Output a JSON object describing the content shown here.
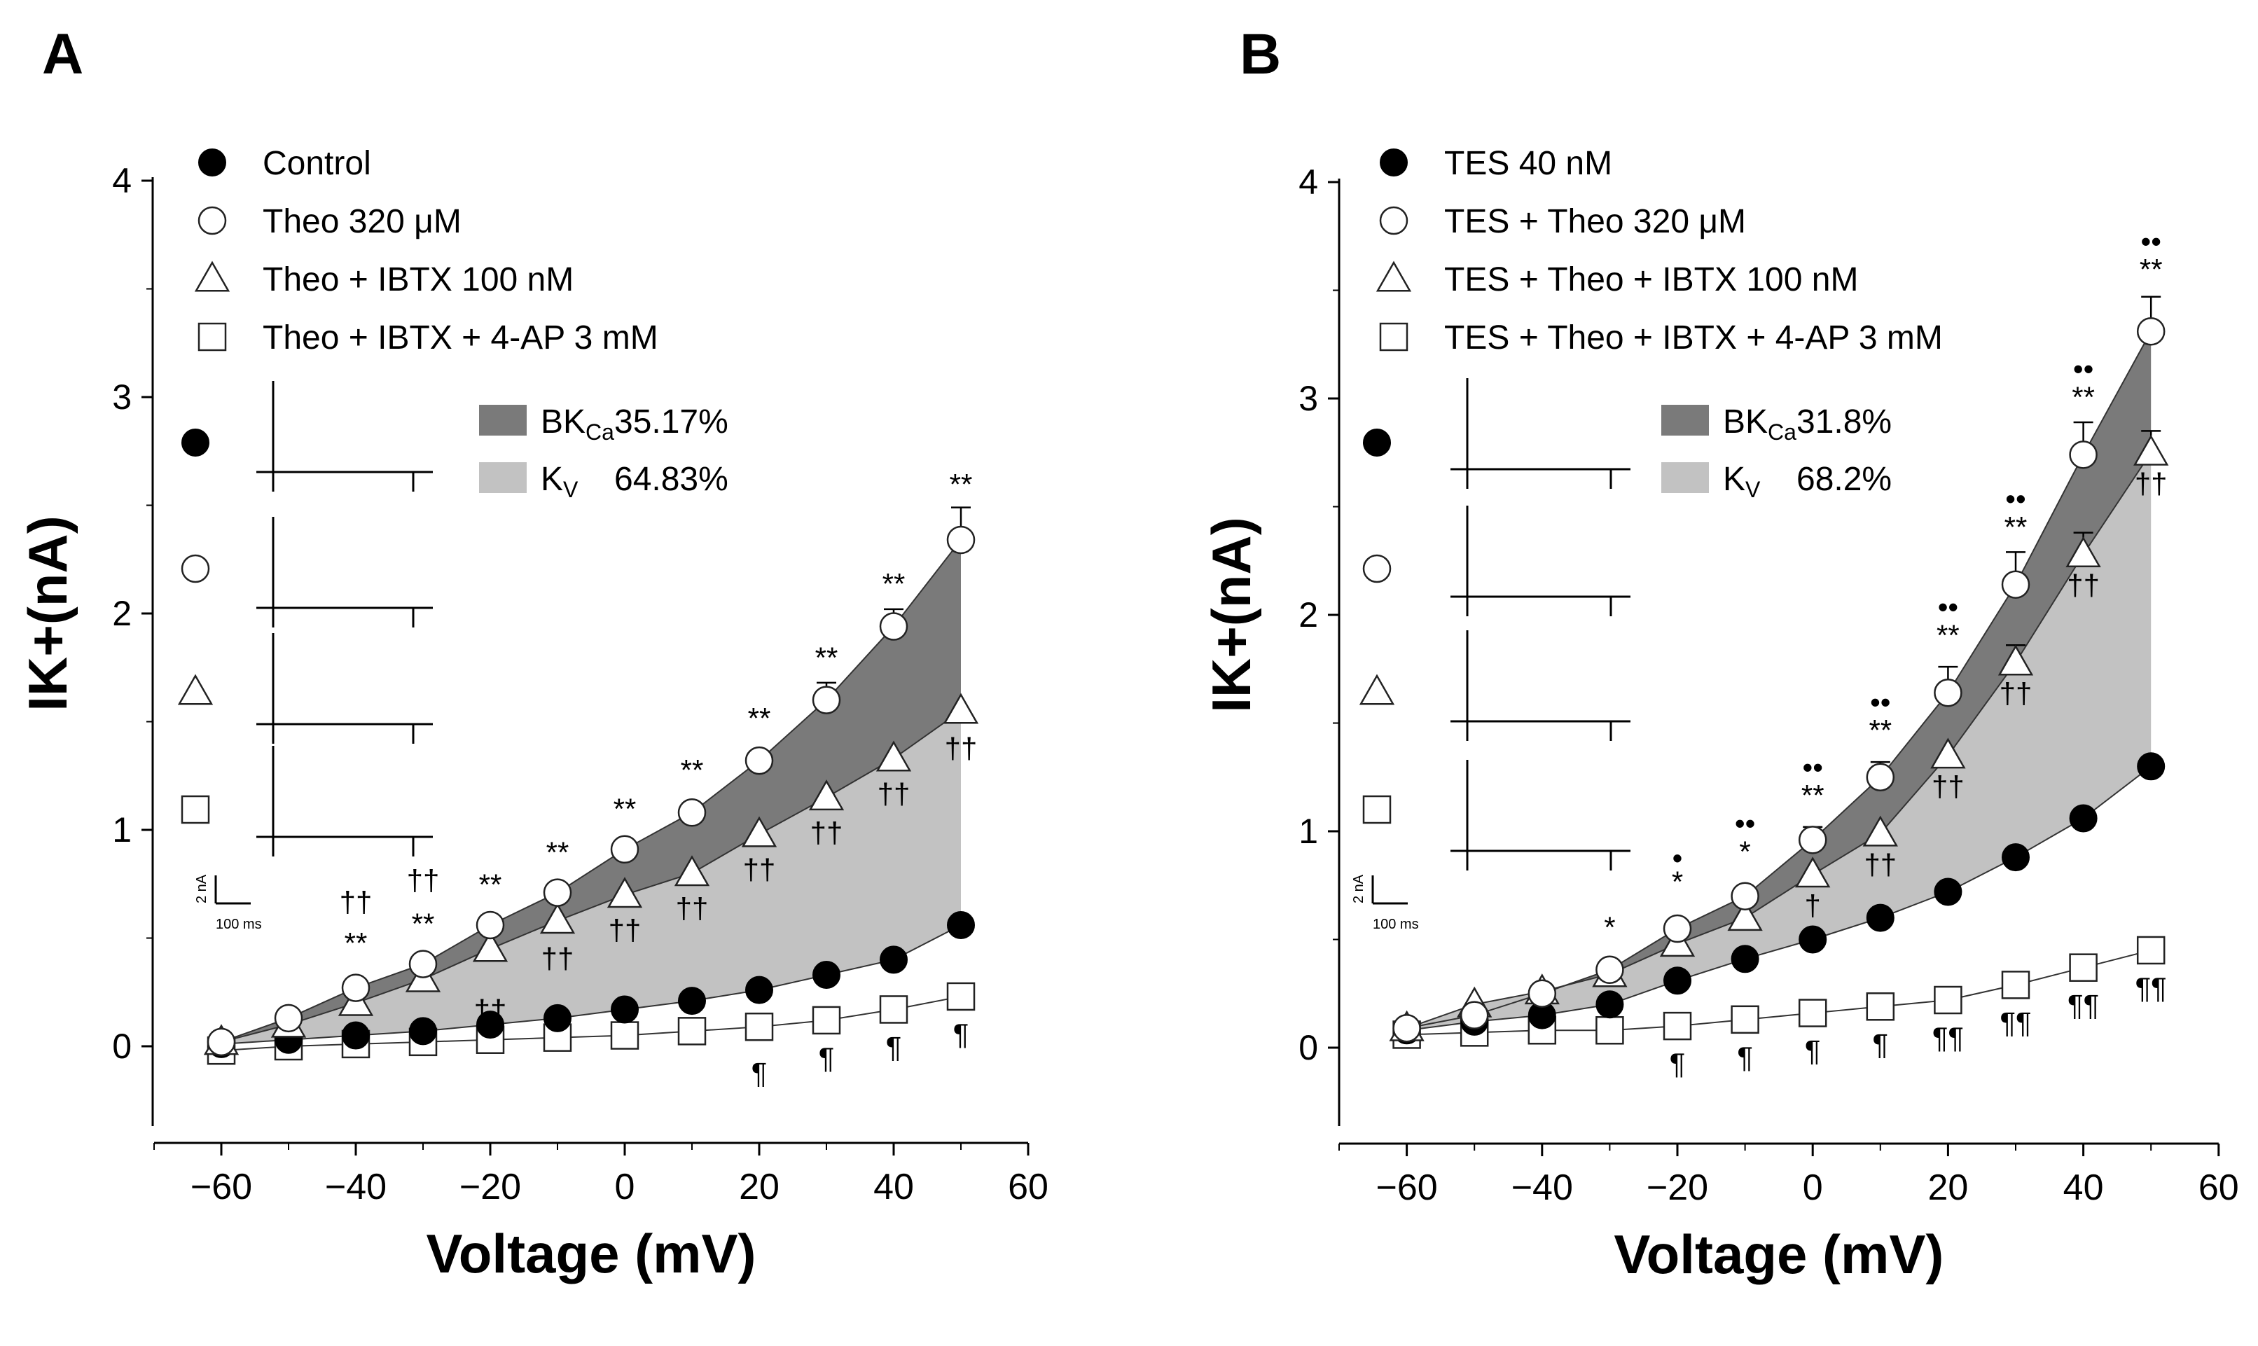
{
  "chart_data": [
    {
      "panel": "A",
      "type": "scatter",
      "xlabel": "Voltage (mV)",
      "ylabel": "IK+(nA)",
      "xlim": [
        -70,
        60
      ],
      "ylim": [
        -0.35,
        4
      ],
      "x_ticks": [
        "−60",
        "−40",
        "−20",
        "0",
        "20",
        "40",
        "60"
      ],
      "y_ticks": [
        "0",
        "1",
        "2",
        "3",
        "4"
      ],
      "legend": [
        "Control",
        "Theo 320 μM",
        "Theo + IBTX 100 nM",
        "Theo + IBTX + 4-AP 3 mM"
      ],
      "shading": [
        {
          "name": "BK",
          "sub": "Ca",
          "value": "35.17%",
          "color": "#7a7a7a"
        },
        {
          "name": "K",
          "sub": "V",
          "value": "64.83%",
          "color": "#c2c2c2"
        }
      ],
      "x": [
        -60,
        -50,
        -40,
        -30,
        -20,
        -10,
        0,
        10,
        20,
        30,
        40,
        50
      ],
      "series": [
        {
          "name": "Control",
          "marker": "filled-circle",
          "values": [
            0.01,
            0.03,
            0.05,
            0.07,
            0.1,
            0.13,
            0.17,
            0.21,
            0.26,
            0.33,
            0.4,
            0.56
          ]
        },
        {
          "name": "Theo 320 μM",
          "marker": "open-circle",
          "values": [
            0.02,
            0.13,
            0.27,
            0.38,
            0.56,
            0.71,
            0.91,
            1.08,
            1.32,
            1.6,
            1.94,
            2.34
          ],
          "err": [
            0,
            0,
            0,
            0,
            0,
            0,
            0,
            0,
            0,
            0.08,
            0.08,
            0.15
          ]
        },
        {
          "name": "Theo + IBTX 100 nM",
          "marker": "open-triangle",
          "values": [
            0.02,
            0.1,
            0.2,
            0.31,
            0.45,
            0.58,
            0.7,
            0.8,
            0.98,
            1.15,
            1.33,
            1.55
          ]
        },
        {
          "name": "Theo + IBTX + 4-AP 3 mM",
          "marker": "open-square",
          "values": [
            -0.02,
            0.0,
            0.01,
            0.02,
            0.03,
            0.04,
            0.05,
            0.07,
            0.09,
            0.12,
            0.17,
            0.23
          ]
        }
      ],
      "annotations": [
        {
          "x": -40,
          "y": 0.43,
          "text": "**"
        },
        {
          "x": -40,
          "y": 0.62,
          "text": "††"
        },
        {
          "x": -30,
          "y": 0.52,
          "text": "**"
        },
        {
          "x": -30,
          "y": 0.72,
          "text": "††"
        },
        {
          "x": -20,
          "y": 0.7,
          "text": "**"
        },
        {
          "x": -20,
          "y": 0.12,
          "text": "††"
        },
        {
          "x": -10,
          "y": 0.85,
          "text": "**"
        },
        {
          "x": -10,
          "y": 0.36,
          "text": "††"
        },
        {
          "x": 0,
          "y": 1.05,
          "text": "**"
        },
        {
          "x": 0,
          "y": 0.49,
          "text": "††"
        },
        {
          "x": 10,
          "y": 1.23,
          "text": "**"
        },
        {
          "x": 10,
          "y": 0.59,
          "text": "††"
        },
        {
          "x": 20,
          "y": 1.47,
          "text": "**"
        },
        {
          "x": 20,
          "y": 0.77,
          "text": "††"
        },
        {
          "x": 30,
          "y": 1.75,
          "text": "**"
        },
        {
          "x": 30,
          "y": 0.94,
          "text": "††"
        },
        {
          "x": 40,
          "y": 2.09,
          "text": "**"
        },
        {
          "x": 40,
          "y": 1.12,
          "text": "††"
        },
        {
          "x": 50,
          "y": 2.55,
          "text": "**"
        },
        {
          "x": 50,
          "y": 1.33,
          "text": "††"
        },
        {
          "x": 20,
          "y": -0.17,
          "text": "¶"
        },
        {
          "x": 30,
          "y": -0.1,
          "text": "¶"
        },
        {
          "x": 40,
          "y": -0.05,
          "text": "¶"
        },
        {
          "x": 50,
          "y": 0.01,
          "text": "¶"
        }
      ],
      "scale_bar": {
        "y": "2 nA",
        "x": "100 ms"
      }
    },
    {
      "panel": "B",
      "type": "scatter",
      "xlabel": "Voltage (mV)",
      "ylabel": "IK+(nA)",
      "xlim": [
        -70,
        60
      ],
      "ylim": [
        -0.35,
        4
      ],
      "x_ticks": [
        "−60",
        "−40",
        "−20",
        "0",
        "20",
        "40",
        "60"
      ],
      "y_ticks": [
        "0",
        "1",
        "2",
        "3",
        "4"
      ],
      "legend": [
        "TES 40 nM",
        "TES + Theo 320 μM",
        "TES + Theo + IBTX 100 nM",
        "TES + Theo + IBTX + 4-AP 3 mM"
      ],
      "shading": [
        {
          "name": "BK",
          "sub": "Ca",
          "value": "31.8%",
          "color": "#7a7a7a"
        },
        {
          "name": "K",
          "sub": "V",
          "value": "68.2%",
          "color": "#c2c2c2"
        }
      ],
      "x": [
        -60,
        -50,
        -40,
        -30,
        -20,
        -10,
        0,
        10,
        20,
        30,
        40,
        50
      ],
      "series": [
        {
          "name": "TES 40 nM",
          "marker": "filled-circle",
          "values": [
            0.08,
            0.12,
            0.15,
            0.2,
            0.31,
            0.41,
            0.5,
            0.6,
            0.72,
            0.88,
            1.06,
            1.3
          ]
        },
        {
          "name": "TES + Theo 320 μM",
          "marker": "open-circle",
          "values": [
            0.09,
            0.15,
            0.25,
            0.36,
            0.55,
            0.7,
            0.96,
            1.25,
            1.64,
            2.14,
            2.74,
            3.31
          ],
          "err": [
            0,
            0,
            0,
            0,
            0,
            0,
            0.06,
            0.07,
            0.12,
            0.15,
            0.15,
            0.16
          ]
        },
        {
          "name": "TES + Theo + IBTX 100 nM",
          "marker": "open-triangle",
          "values": [
            0.09,
            0.2,
            0.26,
            0.34,
            0.48,
            0.6,
            0.8,
            0.99,
            1.35,
            1.78,
            2.28,
            2.75
          ],
          "err": [
            0,
            0,
            0,
            0,
            0,
            0,
            0,
            0,
            0,
            0.08,
            0.1,
            0.1
          ]
        },
        {
          "name": "TES + Theo + IBTX + 4-AP 3 mM",
          "marker": "open-square",
          "values": [
            0.06,
            0.07,
            0.08,
            0.08,
            0.1,
            0.13,
            0.16,
            0.19,
            0.22,
            0.29,
            0.37,
            0.45
          ]
        }
      ],
      "annotations": [
        {
          "x": -30,
          "y": 0.51,
          "text": "*"
        },
        {
          "x": -20,
          "y": 0.72,
          "text": "*"
        },
        {
          "x": -20,
          "y": 0.83,
          "text": "•"
        },
        {
          "x": -10,
          "y": 0.86,
          "text": "*"
        },
        {
          "x": -10,
          "y": 0.99,
          "text": "••"
        },
        {
          "x": 0,
          "y": 1.12,
          "text": "**"
        },
        {
          "x": 0,
          "y": 1.25,
          "text": "••"
        },
        {
          "x": 0,
          "y": 0.61,
          "text": "†"
        },
        {
          "x": 10,
          "y": 1.42,
          "text": "**"
        },
        {
          "x": 10,
          "y": 1.55,
          "text": "••"
        },
        {
          "x": 10,
          "y": 0.8,
          "text": "††"
        },
        {
          "x": 20,
          "y": 1.86,
          "text": "**"
        },
        {
          "x": 20,
          "y": 1.99,
          "text": "••"
        },
        {
          "x": 20,
          "y": 1.16,
          "text": "††"
        },
        {
          "x": 30,
          "y": 2.36,
          "text": "**"
        },
        {
          "x": 30,
          "y": 2.49,
          "text": "••"
        },
        {
          "x": 30,
          "y": 1.59,
          "text": "††"
        },
        {
          "x": 40,
          "y": 2.96,
          "text": "**"
        },
        {
          "x": 40,
          "y": 3.09,
          "text": "••"
        },
        {
          "x": 40,
          "y": 2.09,
          "text": "††"
        },
        {
          "x": 50,
          "y": 3.55,
          "text": "**"
        },
        {
          "x": 50,
          "y": 3.68,
          "text": "••"
        },
        {
          "x": 50,
          "y": 2.56,
          "text": "††"
        },
        {
          "x": -20,
          "y": -0.12,
          "text": "¶"
        },
        {
          "x": -10,
          "y": -0.09,
          "text": "¶"
        },
        {
          "x": 0,
          "y": -0.06,
          "text": "¶"
        },
        {
          "x": 10,
          "y": -0.03,
          "text": "¶"
        },
        {
          "x": 20,
          "y": 0.0,
          "text": "¶¶"
        },
        {
          "x": 30,
          "y": 0.07,
          "text": "¶¶"
        },
        {
          "x": 40,
          "y": 0.15,
          "text": "¶¶"
        },
        {
          "x": 50,
          "y": 0.23,
          "text": "¶¶"
        }
      ],
      "scale_bar": {
        "y": "2 nA",
        "x": "100 ms"
      }
    }
  ]
}
